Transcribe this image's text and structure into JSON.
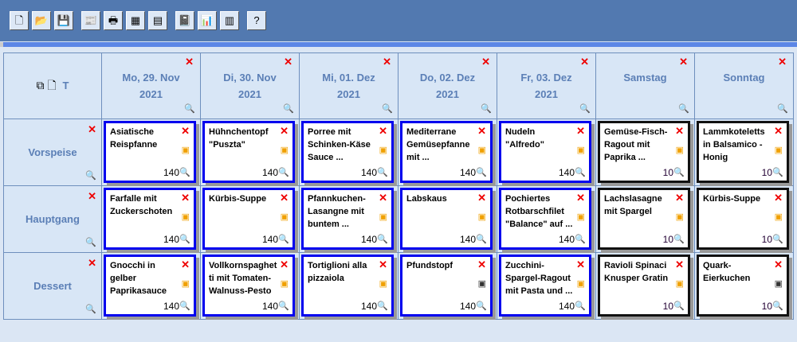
{
  "toolbar": {
    "buttons": [
      {
        "name": "new-icon",
        "glyph": "🗋"
      },
      {
        "name": "open-icon",
        "glyph": "📂"
      },
      {
        "name": "save-icon",
        "glyph": "💾"
      },
      {
        "name": "document-icon",
        "glyph": "📰"
      },
      {
        "name": "print-icon",
        "glyph": "🖶"
      },
      {
        "name": "table-icon",
        "glyph": "▦"
      },
      {
        "name": "calculator-icon",
        "glyph": "▤"
      },
      {
        "name": "notebook-icon",
        "glyph": "📓"
      },
      {
        "name": "chart-icon",
        "glyph": "📊"
      },
      {
        "name": "abacus-icon",
        "glyph": "▥"
      },
      {
        "name": "help-icon",
        "glyph": "?"
      }
    ]
  },
  "corner": {
    "t_label": "T"
  },
  "days": [
    {
      "line1": "Mo, 29. Nov",
      "line2": "2021"
    },
    {
      "line1": "Di, 30. Nov",
      "line2": "2021"
    },
    {
      "line1": "Mi, 01. Dez",
      "line2": "2021"
    },
    {
      "line1": "Do, 02. Dez",
      "line2": "2021"
    },
    {
      "line1": "Fr, 03. Dez",
      "line2": "2021"
    },
    {
      "line1": "Samstag",
      "line2": ""
    },
    {
      "line1": "Sonntag",
      "line2": ""
    }
  ],
  "rows": [
    {
      "label": "Vorspeise",
      "meals": [
        {
          "title": "Asiatische Reispfanne",
          "count": "140",
          "cup": "orange"
        },
        {
          "title": "Hühnchentopf \"Puszta\"",
          "count": "140",
          "cup": "orange"
        },
        {
          "title": "Porree mit Schinken-Käse Sauce ...",
          "count": "140",
          "cup": "orange"
        },
        {
          "title": "Mediterrane Gemüsepfanne mit ...",
          "count": "140",
          "cup": "orange"
        },
        {
          "title": "Nudeln \"Alfredo\"",
          "count": "140",
          "cup": "orange"
        },
        {
          "title": "Gemüse-Fisch-Ragout mit Paprika ...",
          "count": "10",
          "cup": "orange"
        },
        {
          "title": "Lammkoteletts in Balsamico - Honig",
          "count": "10",
          "cup": "orange"
        }
      ]
    },
    {
      "label": "Hauptgang",
      "meals": [
        {
          "title": "Farfalle mit Zuckerschoten",
          "count": "140",
          "cup": "orange"
        },
        {
          "title": "Kürbis-Suppe",
          "count": "140",
          "cup": "orange"
        },
        {
          "title": "Pfannkuchen-Lasangne mit buntem ...",
          "count": "140",
          "cup": "orange"
        },
        {
          "title": "Labskaus",
          "count": "140",
          "cup": "orange"
        },
        {
          "title": "Pochiertes Rotbarschfilet \"Balance\" auf ...",
          "count": "140",
          "cup": "orange"
        },
        {
          "title": "Lachslasagne mit Spargel",
          "count": "10",
          "cup": "orange"
        },
        {
          "title": "Kürbis-Suppe",
          "count": "10",
          "cup": "orange"
        }
      ]
    },
    {
      "label": "Dessert",
      "meals": [
        {
          "title": "Gnocchi in gelber Paprikasauce",
          "count": "140",
          "cup": "orange"
        },
        {
          "title": "Vollkornspaghetti mit Tomaten-Walnuss-Pesto",
          "count": "140",
          "cup": "orange"
        },
        {
          "title": "Tortiglioni alla pizzaiola",
          "count": "140",
          "cup": "orange"
        },
        {
          "title": "Pfundstopf",
          "count": "140",
          "cup": "gray"
        },
        {
          "title": "Zucchini-Spargel-Ragout mit Pasta und ...",
          "count": "140",
          "cup": "orange"
        },
        {
          "title": "Ravioli Spinaci Knusper Gratin",
          "count": "10",
          "cup": "orange"
        },
        {
          "title": "Quark-Eierkuchen",
          "count": "10",
          "cup": "gray"
        }
      ]
    }
  ]
}
